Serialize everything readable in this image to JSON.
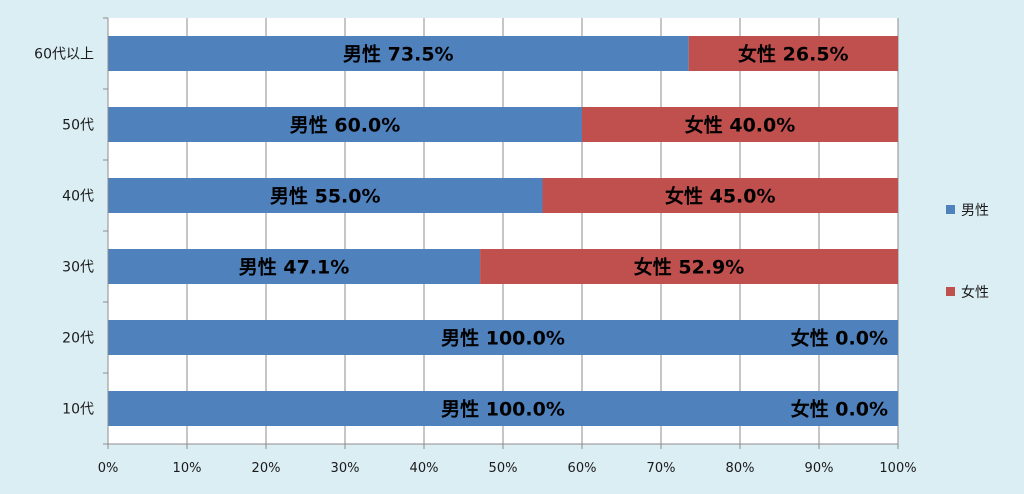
{
  "chart_data": {
    "type": "bar",
    "orientation": "horizontal",
    "stacked": "percent",
    "categories": [
      "60代以上",
      "50代",
      "40代",
      "30代",
      "20代",
      "10代"
    ],
    "series": [
      {
        "name": "男性",
        "color": "#4f81bd",
        "values": [
          73.5,
          60.0,
          55.0,
          47.1,
          100.0,
          100.0
        ],
        "labels": [
          "男性 73.5%",
          "男性 60.0%",
          "男性 55.0%",
          "男性 47.1%",
          "男性 100.0%",
          "男性 100.0%"
        ]
      },
      {
        "name": "女性",
        "color": "#c0504d",
        "values": [
          26.5,
          40.0,
          45.0,
          52.9,
          0.0,
          0.0
        ],
        "labels": [
          "女性 26.5%",
          "女性 40.0%",
          "女性 45.0%",
          "女性 52.9%",
          "女性 0.0%",
          "女性 0.0%"
        ]
      }
    ],
    "x_ticks": [
      "0%",
      "10%",
      "20%",
      "30%",
      "40%",
      "50%",
      "60%",
      "70%",
      "80%",
      "90%",
      "100%"
    ],
    "xlim": [
      0,
      100
    ],
    "grid": "vertical",
    "legend": "right"
  }
}
